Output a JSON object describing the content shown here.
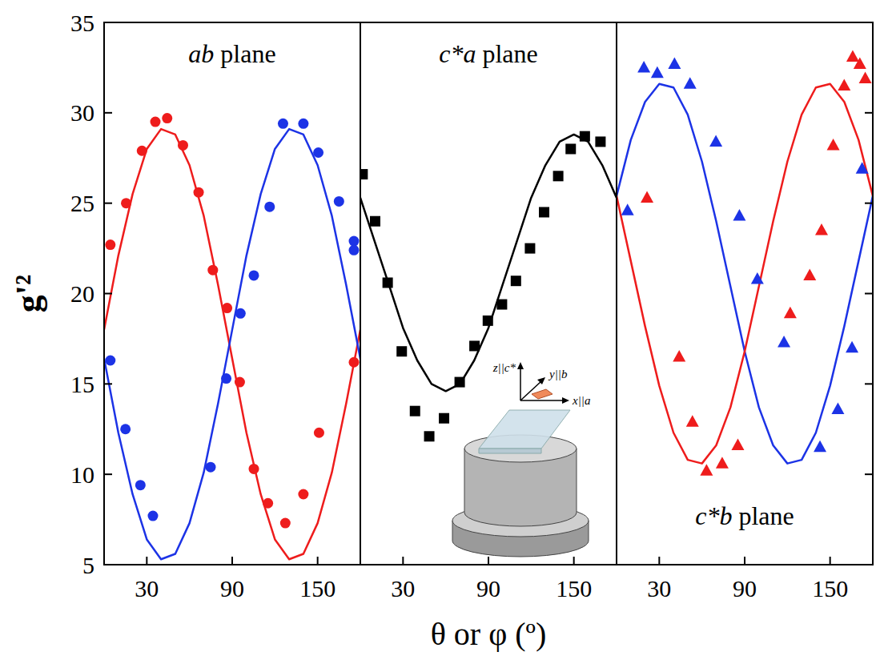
{
  "chart_data": {
    "type": "scatter",
    "x_label": "θ or φ (º)",
    "y_label": "g'²",
    "ylim": [
      5,
      35
    ],
    "yticks": [
      5,
      10,
      15,
      20,
      25,
      30,
      35
    ],
    "inset_labels": [
      "z||c*",
      "y||b",
      "x||a"
    ],
    "panels": [
      {
        "title": "ab plane",
        "xlim": [
          0,
          180
        ],
        "xticks": [
          30,
          90,
          150
        ],
        "series": [
          {
            "type": "line",
            "color": "#ee1c1c",
            "line_style": "solid",
            "x": [
              0,
              10,
              20,
              30,
              40,
              50,
              60,
              70,
              80,
              90,
              100,
              110,
              120,
              130,
              140,
              150,
              160,
              170,
              180
            ],
            "values": [
              18.0,
              22.1,
              25.5,
              28.0,
              29.1,
              28.8,
              27.1,
              24.3,
              20.5,
              16.4,
              12.3,
              8.9,
              6.4,
              5.3,
              5.6,
              7.3,
              10.1,
              13.9,
              18.0
            ]
          },
          {
            "type": "line",
            "color": "#1c33e6",
            "line_style": "solid",
            "x": [
              0,
              10,
              20,
              30,
              40,
              50,
              60,
              70,
              80,
              90,
              100,
              110,
              120,
              130,
              140,
              150,
              160,
              170,
              180
            ],
            "values": [
              16.4,
              12.3,
              8.9,
              6.4,
              5.3,
              5.6,
              7.3,
              10.1,
              13.9,
              18.0,
              22.1,
              25.5,
              28.0,
              29.1,
              28.8,
              27.1,
              24.3,
              20.5,
              16.4
            ]
          },
          {
            "type": "scatter",
            "color": "#ee1c1c",
            "marker": "circle",
            "x": [
              4.4,
              15.5,
              26.6,
              36,
              44.3,
              55.4,
              66.4,
              76.4,
              86.4,
              95.3,
              105.2,
              115.1,
              127.3,
              140,
              151,
              175.5
            ],
            "values": [
              22.7,
              25,
              27.9,
              29.5,
              29.7,
              28.2,
              25.6,
              21.3,
              19.2,
              15.1,
              10.3,
              8.4,
              7.3,
              8.9,
              12.3,
              16.2
            ]
          },
          {
            "type": "scatter",
            "color": "#1c33e6",
            "marker": "circle",
            "x": [
              4.4,
              15,
              25.5,
              34.3,
              74.8,
              85.8,
              95.8,
              105.2,
              116.3,
              125.7,
              140,
              150.5,
              165,
              175.5,
              175.5
            ],
            "values": [
              16.3,
              12.5,
              9.4,
              7.7,
              10.4,
              15.3,
              18.9,
              21,
              24.8,
              29.4,
              29.4,
              27.8,
              25.1,
              22.9,
              22.4
            ]
          }
        ]
      },
      {
        "title": "c*a plane",
        "xlim": [
          0,
          180
        ],
        "xticks": [
          30,
          90,
          150
        ],
        "series": [
          {
            "type": "line",
            "color": "#000000",
            "line_style": "solid",
            "x": [
              0,
              10,
              20,
              30,
              40,
              50,
              60,
              70,
              80,
              90,
              100,
              110,
              120,
              130,
              140,
              150,
              160,
              170,
              180
            ],
            "values": [
              25.3,
              22.9,
              20.5,
              18.1,
              16.3,
              15.0,
              14.6,
              15.0,
              16.3,
              18.1,
              20.5,
              22.9,
              25.3,
              27.1,
              28.4,
              28.8,
              28.4,
              27.1,
              25.3
            ]
          },
          {
            "type": "scatter",
            "color": "#000000",
            "marker": "square",
            "x": [
              1.6,
              10.4,
              19.2,
              29.1,
              38.4,
              48.4,
              58.8,
              69.8,
              80.2,
              89.6,
              99.5,
              109.3,
              119.2,
              129.1,
              139,
              147.8,
              157.7,
              168.7
            ],
            "values": [
              26.6,
              24,
              20.6,
              16.8,
              13.5,
              12.1,
              13.1,
              15.1,
              17.1,
              18.5,
              19.4,
              20.7,
              22.5,
              24.5,
              26.5,
              28,
              28.7,
              28.4
            ]
          }
        ]
      },
      {
        "title": "c*b plane",
        "xlim": [
          0,
          180
        ],
        "xticks": [
          30,
          90,
          150
        ],
        "series": [
          {
            "type": "line",
            "color": "#1c33e6",
            "line_style": "solid",
            "x": [
              0,
              10,
              20,
              30,
              40,
              50,
              60,
              70,
              80,
              90,
              100,
              110,
              120,
              130,
              140,
              150,
              160,
              170,
              180
            ],
            "values": [
              25.4,
              28.5,
              30.6,
              31.6,
              31.4,
              29.9,
              27.3,
              24.0,
              20.4,
              16.8,
              13.7,
              11.6,
              10.6,
              10.8,
              12.3,
              14.9,
              18.2,
              21.8,
              25.4
            ]
          },
          {
            "type": "line",
            "color": "#ee1c1c",
            "line_style": "solid",
            "x": [
              0,
              10,
              20,
              30,
              40,
              50,
              60,
              70,
              80,
              90,
              100,
              110,
              120,
              130,
              140,
              150,
              160,
              170,
              180
            ],
            "values": [
              25.4,
              21.8,
              18.2,
              14.9,
              12.3,
              10.8,
              10.6,
              11.6,
              13.7,
              16.8,
              20.4,
              24.0,
              27.3,
              29.9,
              31.4,
              31.6,
              30.6,
              28.5,
              25.4
            ]
          },
          {
            "type": "scatter",
            "color": "#1c33e6",
            "marker": "triangle",
            "x": [
              7.7,
              19.2,
              28.6,
              40.7,
              51.6,
              69.8,
              86.3,
              98.9,
              117.6,
              142.9,
              155.5,
              165.4,
              172.5
            ],
            "values": [
              24.6,
              32.5,
              32.2,
              32.7,
              31.6,
              28.4,
              24.3,
              20.8,
              17.3,
              11.5,
              13.6,
              17,
              26.9
            ]
          },
          {
            "type": "scatter",
            "color": "#ee1c1c",
            "marker": "triangle",
            "x": [
              21.4,
              44,
              53.3,
              63.2,
              74.2,
              85.2,
              122,
              135.7,
              144,
              152.2,
              159.9,
              165.9,
              170.9,
              174.7
            ],
            "values": [
              25.3,
              16.5,
              12.9,
              10.2,
              10.6,
              11.6,
              18.9,
              21,
              23.5,
              28.2,
              31.5,
              33.1,
              32.7,
              31.9
            ]
          }
        ]
      }
    ]
  }
}
